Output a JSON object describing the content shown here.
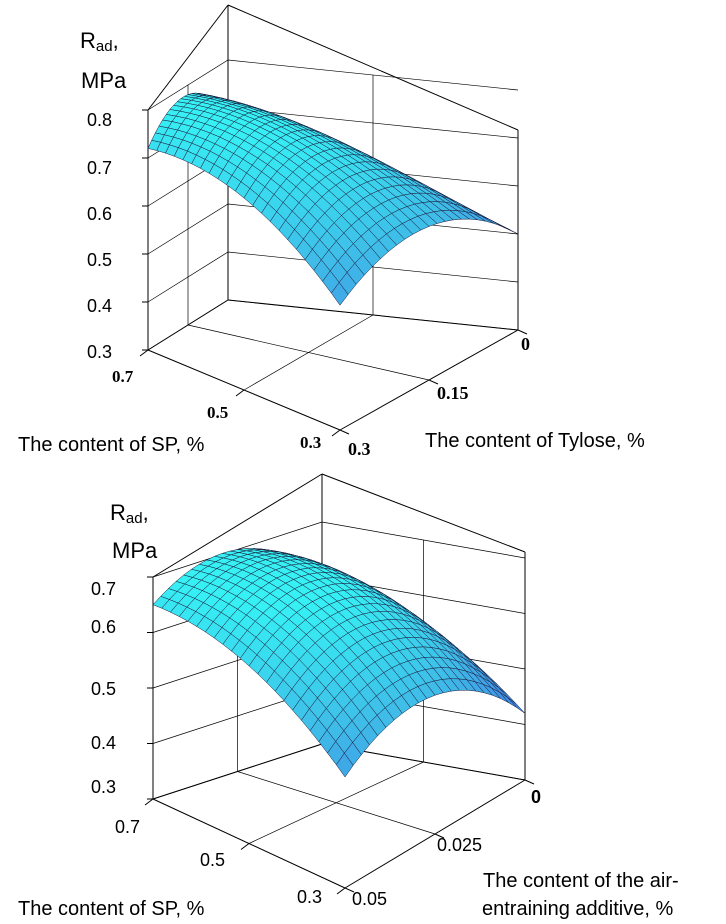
{
  "chart_data": [
    {
      "type": "surface",
      "ylabel_main": "R",
      "ylabel_sub": "ad",
      "ylabel_suffix": ",",
      "ylabel_unit": "MPa",
      "z_ticks": [
        "0.8",
        "0.7",
        "0.6",
        "0.5",
        "0.4",
        "0.3"
      ],
      "zlim": [
        0.3,
        0.8
      ],
      "x_ticks": [
        "0.7",
        "0.5",
        "0.3"
      ],
      "xlabel": "The content of SP, %",
      "y_ticks": [
        "0",
        "0.15",
        "0.3"
      ],
      "ylabel": "The content of Tylose, %",
      "x_values": [
        0.3,
        0.5,
        0.7
      ],
      "y_values": [
        0,
        0.15,
        0.3
      ],
      "z_estimates": [
        [
          0.5,
          0.62,
          0.56
        ],
        [
          0.6,
          0.75,
          0.7
        ],
        [
          0.68,
          0.78,
          0.72
        ]
      ],
      "colormap": [
        "#2a44d8",
        "#3f7fe4",
        "#3fbbe8",
        "#36f0f4"
      ],
      "grid": true
    },
    {
      "type": "surface",
      "ylabel_main": "R",
      "ylabel_sub": "ad",
      "ylabel_suffix": ",",
      "ylabel_unit": "MPa",
      "z_ticks": [
        "0.7",
        "0.6",
        "0.5",
        "0.4",
        "0.3"
      ],
      "zlim": [
        0.3,
        0.7
      ],
      "x_ticks": [
        "0.7",
        "0.5",
        "0.3"
      ],
      "xlabel": "The content of SP, %",
      "y_ticks": [
        "0",
        "0.025",
        "0.05"
      ],
      "ylabel_line1": "The content of the air-",
      "ylabel_line2": "entraining additive, %",
      "x_values": [
        0.3,
        0.5,
        0.7
      ],
      "y_values": [
        0,
        0.025,
        0.05
      ],
      "z_estimates": [
        [
          0.42,
          0.55,
          0.5
        ],
        [
          0.55,
          0.68,
          0.62
        ],
        [
          0.6,
          0.7,
          0.65
        ]
      ],
      "colormap": [
        "#1a2ce0",
        "#3f7fe4",
        "#3fbbe8",
        "#36f0f4"
      ],
      "grid": true
    }
  ]
}
